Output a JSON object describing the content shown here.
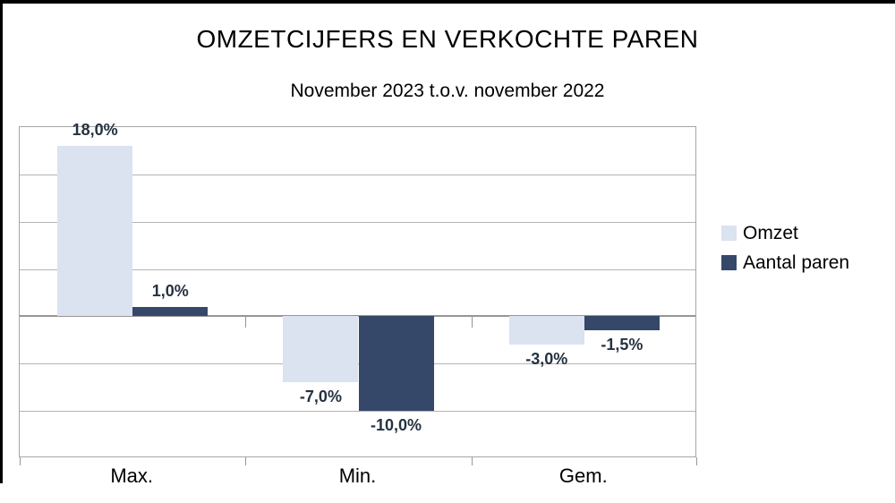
{
  "title": "OMZETCIJFERS EN VERKOCHTE PAREN",
  "subtitle": "November 2023 t.o.v. november 2022",
  "chart_data": {
    "type": "bar",
    "title": "OMZETCIJFERS EN VERKOCHTE PAREN",
    "subtitle": "November 2023 t.o.v. november 2022",
    "categories": [
      "Max.",
      "Min.",
      "Gem."
    ],
    "series": [
      {
        "name": "Omzet",
        "color": "#dbe2f0",
        "values": [
          18.0,
          -7.0,
          -3.0
        ],
        "labels": [
          "18,0%",
          "-7,0%",
          "-3,0%"
        ]
      },
      {
        "name": "Aantal paren",
        "color": "#36486a",
        "values": [
          1.0,
          -10.0,
          -1.5
        ],
        "labels": [
          "1,0%",
          "-10,0%",
          "-1,5%"
        ]
      }
    ],
    "ylabel": "",
    "xlabel": "",
    "ylim": [
      -15,
      20
    ],
    "grid_step": 5,
    "grid": true,
    "y_tick_labels_shown": false,
    "legend_position": "right",
    "colors": {
      "data_label": "#253241",
      "gridline": "#b4b4b4",
      "zero_axis": "#969696",
      "tick": "#969696",
      "plot_border": "#a6a6a6",
      "frame": "#000000"
    }
  }
}
